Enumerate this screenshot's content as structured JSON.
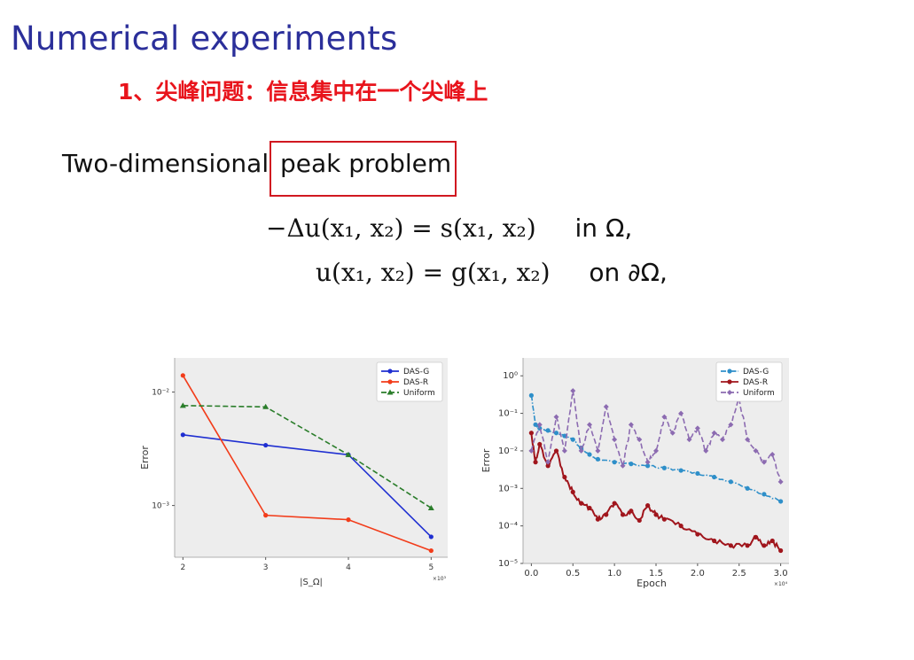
{
  "slide": {
    "title": "Numerical experiments",
    "subtitle": "1、尖峰问题：信息集中在一个尖峰上",
    "problem_prefix": "Two-dimensional",
    "problem_highlight": "peak problem"
  },
  "equations": {
    "line1": {
      "lhs": "−Δu(x₁, x₂) = s(x₁, x₂)",
      "domain": "in Ω,"
    },
    "line2": {
      "lhs": "u(x₁, x₂) = g(x₁, x₂)",
      "domain": "on ∂Ω,"
    }
  },
  "chart_data": [
    {
      "type": "line",
      "xlabel": "|S_Ω|",
      "ylabel": "Error",
      "x": [
        2,
        3,
        4,
        5
      ],
      "x_tick_labels": [
        "2",
        "3",
        "4",
        "5"
      ],
      "x_multiplier_label": "×10³",
      "y_scale": "log",
      "ylim": [
        0.00035,
        0.02
      ],
      "y_tick_labels": [
        "10⁻²",
        "10⁻³"
      ],
      "legend_position": "top-right",
      "grid": false,
      "series": [
        {
          "name": "DAS-G",
          "color": "#1f2fd1",
          "dash": "solid",
          "marker": "dot",
          "values": [
            0.0042,
            0.0034,
            0.0028,
            0.00053
          ]
        },
        {
          "name": "DAS-R",
          "color": "#f23c1a",
          "dash": "solid",
          "marker": "dot",
          "values": [
            0.014,
            0.00082,
            0.00075,
            0.0004
          ]
        },
        {
          "name": "Uniform",
          "color": "#2a7d2a",
          "dash": "dashed",
          "marker": "triangle",
          "values": [
            0.0076,
            0.0074,
            0.0028,
            0.00095
          ]
        }
      ]
    },
    {
      "type": "line",
      "xlabel": "Epoch",
      "ylabel": "Error",
      "x_tick_labels": [
        "0.0",
        "0.5",
        "1.0",
        "1.5",
        "2.0",
        "2.5",
        "3.0"
      ],
      "x_ticks": [
        0,
        5000,
        10000,
        15000,
        20000,
        25000,
        30000
      ],
      "x_multiplier_label": "×10⁴",
      "xlim": [
        0,
        30000
      ],
      "y_scale": "log",
      "ylim": [
        1e-05,
        3
      ],
      "y_tick_labels": [
        "10⁰",
        "10⁻¹",
        "10⁻²",
        "10⁻³",
        "10⁻⁴",
        "10⁻⁵"
      ],
      "legend_position": "top-right",
      "grid": false,
      "series": [
        {
          "name": "DAS-G",
          "color": "#2e8fc9",
          "dash": "dashdot",
          "marker": "dot",
          "x": [
            0,
            500,
            1000,
            2000,
            3000,
            4000,
            5000,
            6000,
            7000,
            8000,
            10000,
            12000,
            14000,
            16000,
            18000,
            20000,
            22000,
            24000,
            26000,
            28000,
            30000
          ],
          "values": [
            0.3,
            0.05,
            0.04,
            0.035,
            0.03,
            0.025,
            0.02,
            0.012,
            0.008,
            0.006,
            0.005,
            0.0045,
            0.004,
            0.0035,
            0.003,
            0.0025,
            0.002,
            0.0015,
            0.001,
            0.0007,
            0.00045
          ]
        },
        {
          "name": "DAS-R",
          "color": "#a0151c",
          "dash": "solid",
          "marker": "dot",
          "x": [
            0,
            500,
            1000,
            2000,
            3000,
            4000,
            5000,
            6000,
            7000,
            8000,
            9000,
            10000,
            11000,
            12000,
            13000,
            14000,
            15000,
            16000,
            18000,
            20000,
            22000,
            24000,
            26000,
            27000,
            28000,
            29000,
            30000
          ],
          "values": [
            0.03,
            0.005,
            0.015,
            0.004,
            0.01,
            0.002,
            0.0008,
            0.0004,
            0.0003,
            0.00015,
            0.0002,
            0.0004,
            0.0002,
            0.00025,
            0.00014,
            0.00035,
            0.0002,
            0.00015,
            0.0001,
            6e-05,
            4e-05,
            3e-05,
            3e-05,
            5e-05,
            3e-05,
            4e-05,
            2.2e-05
          ]
        },
        {
          "name": "Uniform",
          "color": "#8c6bb1",
          "dash": "dashed",
          "marker": "diamond",
          "x": [
            0,
            1000,
            2000,
            3000,
            4000,
            5000,
            6000,
            7000,
            8000,
            9000,
            10000,
            11000,
            12000,
            13000,
            14000,
            15000,
            16000,
            17000,
            18000,
            19000,
            20000,
            21000,
            22000,
            23000,
            24000,
            25000,
            26000,
            27000,
            28000,
            29000,
            30000
          ],
          "values": [
            0.01,
            0.05,
            0.005,
            0.08,
            0.01,
            0.4,
            0.01,
            0.05,
            0.01,
            0.15,
            0.02,
            0.004,
            0.05,
            0.02,
            0.005,
            0.01,
            0.08,
            0.03,
            0.1,
            0.02,
            0.04,
            0.01,
            0.03,
            0.02,
            0.05,
            0.25,
            0.02,
            0.01,
            0.005,
            0.008,
            0.0015
          ]
        }
      ]
    }
  ]
}
